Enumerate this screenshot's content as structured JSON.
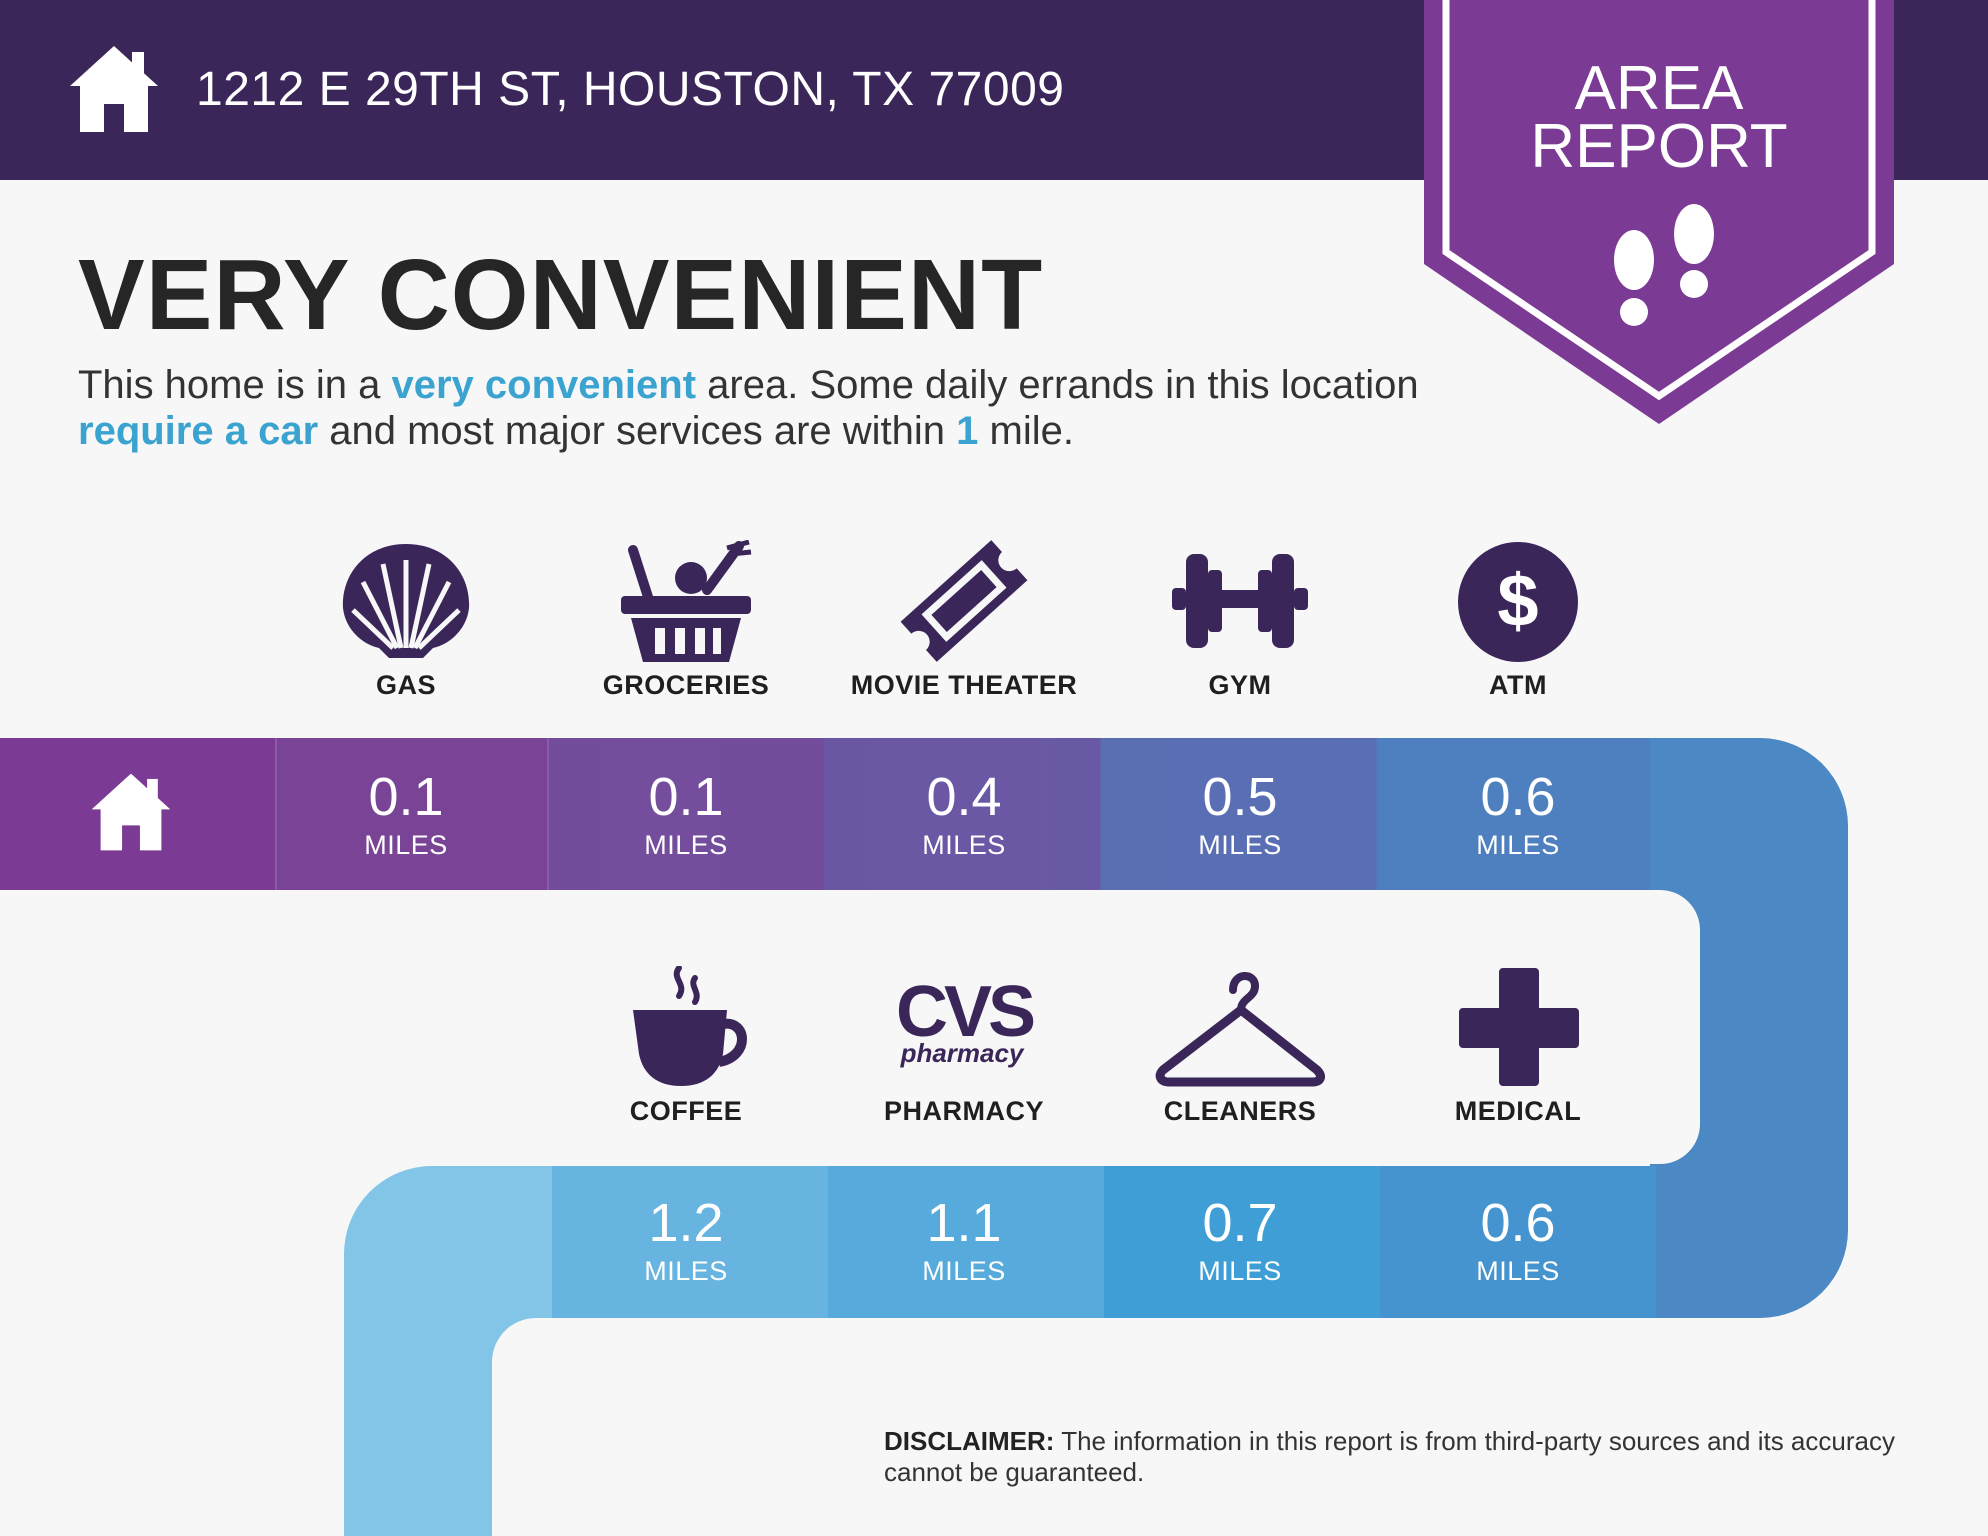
{
  "header": {
    "address": "1212 E 29TH ST, HOUSTON, TX 77009",
    "badge_line1": "AREA",
    "badge_line2": "REPORT"
  },
  "headline": "VERY CONVENIENT",
  "summary": {
    "part1": "This home is in a ",
    "hl1": "very convenient",
    "part2": " area. Some daily errands in this location ",
    "hl2": "require a car",
    "part3": " and most major services are within ",
    "hl3": "1",
    "part4": " mile."
  },
  "unit_label": "MILES",
  "row1": [
    {
      "label": "GAS",
      "distance": "0.1",
      "icon": "shell-icon"
    },
    {
      "label": "GROCERIES",
      "distance": "0.1",
      "icon": "grocery-basket-icon"
    },
    {
      "label": "MOVIE THEATER",
      "distance": "0.4",
      "icon": "ticket-icon"
    },
    {
      "label": "GYM",
      "distance": "0.5",
      "icon": "dumbbell-icon"
    },
    {
      "label": "ATM",
      "distance": "0.6",
      "icon": "dollar-icon"
    }
  ],
  "row2": [
    {
      "label": "COFFEE",
      "distance": "1.2",
      "icon": "coffee-cup-icon"
    },
    {
      "label": "PHARMACY",
      "distance": "1.1",
      "icon": "cvs-pharmacy-logo"
    },
    {
      "label": "CLEANERS",
      "distance": "0.7",
      "icon": "hanger-icon"
    },
    {
      "label": "MEDICAL",
      "distance": "0.6",
      "icon": "medical-cross-icon"
    }
  ],
  "logo": {
    "cvs": "CVS",
    "pharmacy": "pharmacy"
  },
  "disclaimer": {
    "label": "DISCLAIMER:",
    "text": " The information in this report is from third-party sources and its accuracy cannot be guaranteed."
  },
  "colors": {
    "header_bg": "#3b2659",
    "badge": "#7b3a93",
    "icon": "#3b2659",
    "highlight": "#3aa3cf"
  }
}
